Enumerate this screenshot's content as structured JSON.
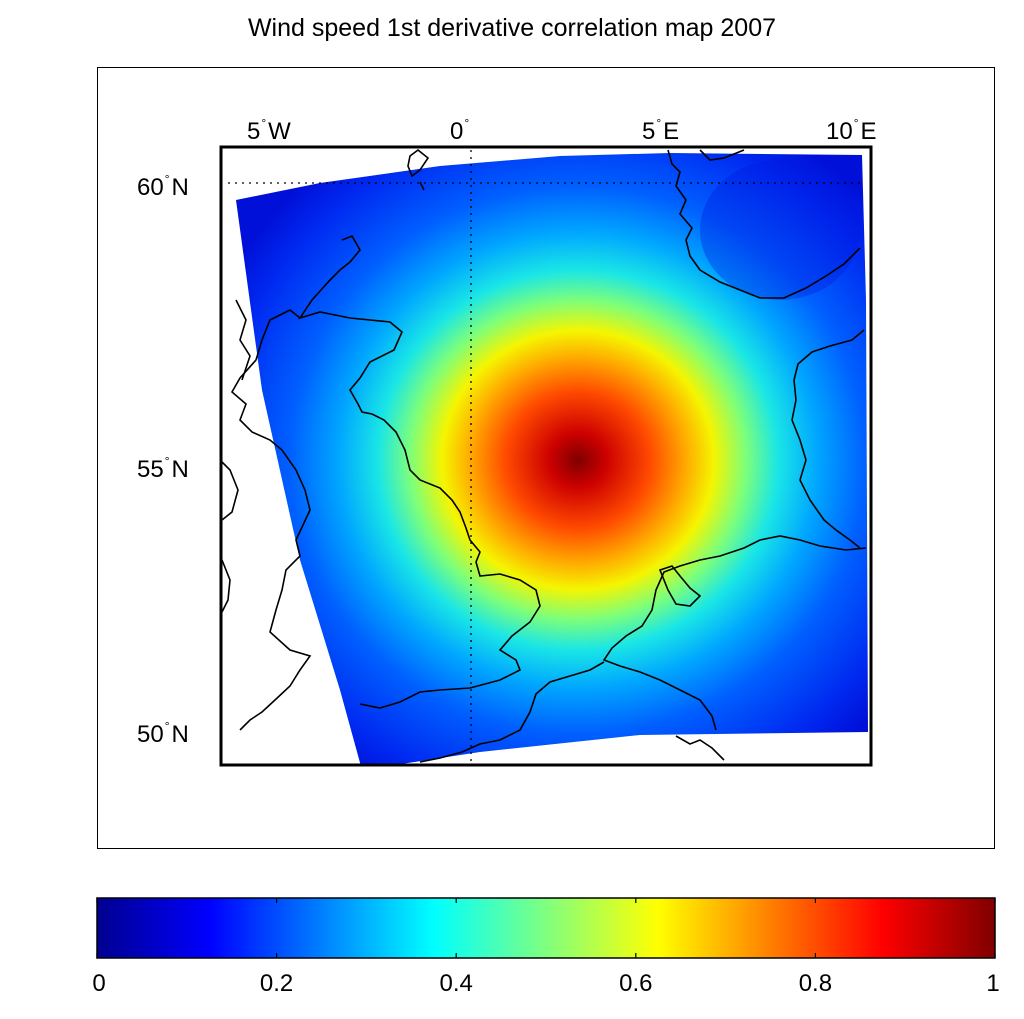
{
  "title": "Wind speed 1st derivative correlation map 2007",
  "map": {
    "colormap": "jet",
    "lon_ticks": [
      {
        "deg": "5",
        "hemi": "W"
      },
      {
        "deg": "0",
        "hemi": ""
      },
      {
        "deg": "5",
        "hemi": "E"
      },
      {
        "deg": "10",
        "hemi": "E"
      }
    ],
    "lat_ticks": [
      {
        "deg": "60",
        "hemi": "N"
      },
      {
        "deg": "55",
        "hemi": "N"
      },
      {
        "deg": "50",
        "hemi": "N"
      }
    ],
    "correlation_peak": {
      "lon": 3.0,
      "lat": 55.2,
      "value": 1.0
    },
    "grid_lines": "dotted at 0° longitude and 60° N",
    "coastline_color": "#000000",
    "no_data_color": "#ffffff"
  },
  "colorbar": {
    "range": [
      0,
      1
    ],
    "tick_labels": [
      "0",
      "0.2",
      "0.4",
      "0.6",
      "0.8",
      "1"
    ]
  }
}
